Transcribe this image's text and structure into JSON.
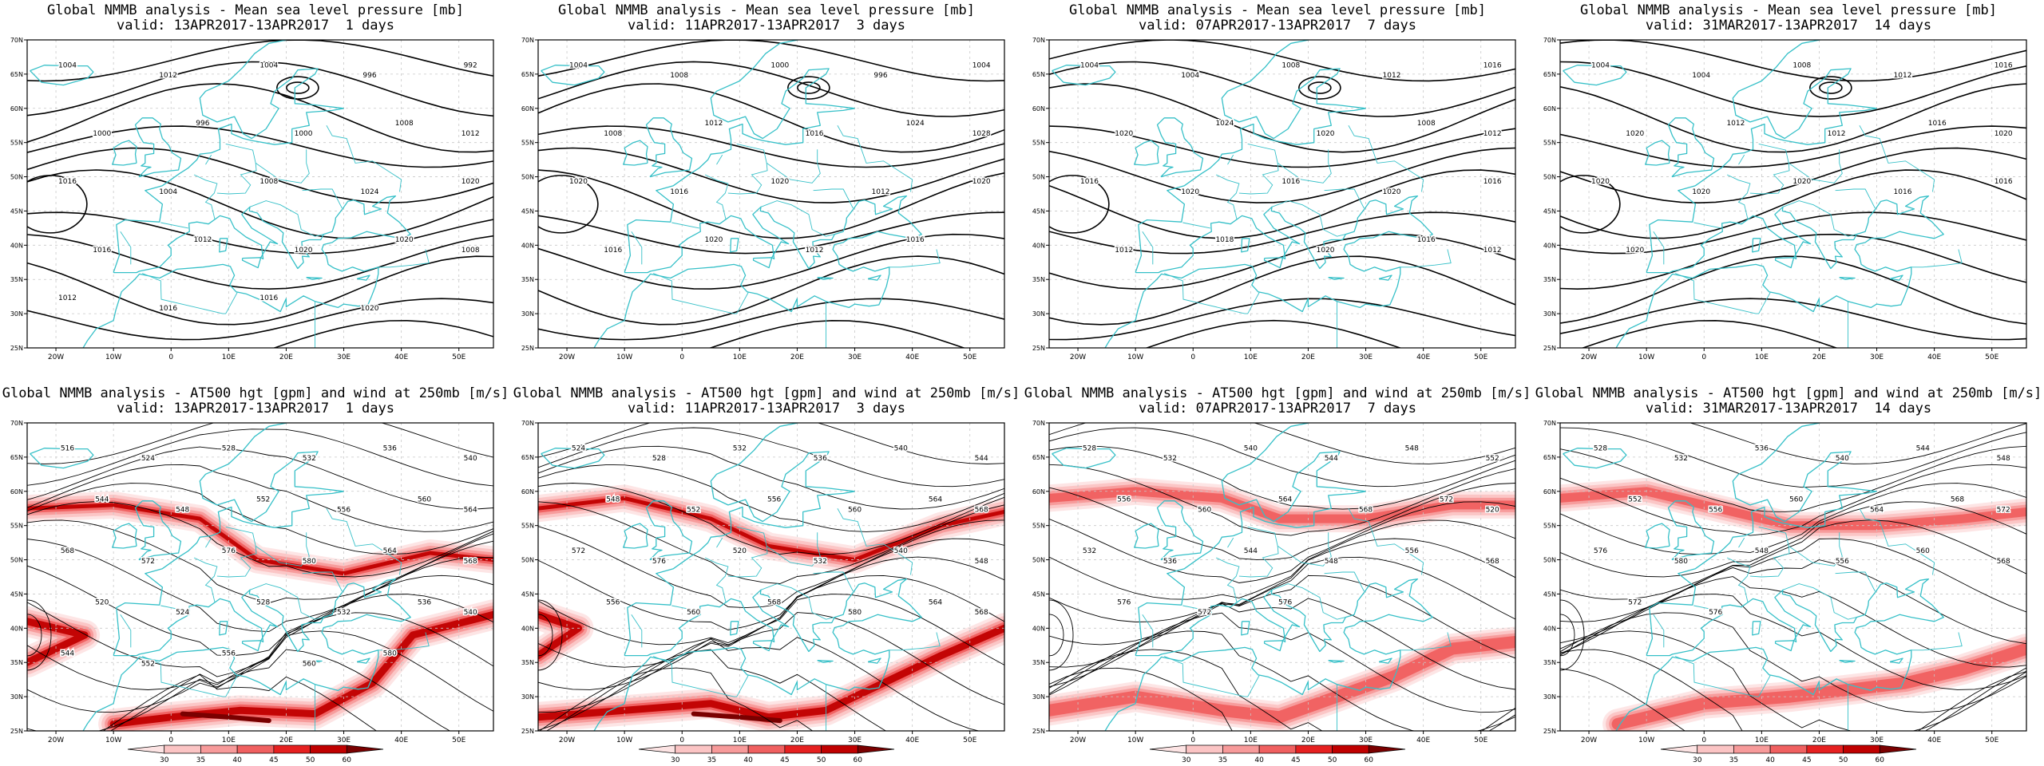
{
  "figure": {
    "rows": [
      {
        "title_line1": "Global NMMB analysis - Mean sea level pressure [mb]",
        "field": "mslp",
        "panels": [
          {
            "valid": "valid: 13APR2017-13APR2017  1 days"
          },
          {
            "valid": "valid: 11APR2017-13APR2017  3 days"
          },
          {
            "valid": "valid: 07APR2017-13APR2017  7 days"
          },
          {
            "valid": "valid: 31MAR2017-13APR2017  14 days"
          }
        ]
      },
      {
        "title_line1": "Global NMMB analysis - AT500 hgt [gpm] and wind at 250mb [m/s]",
        "field": "z500",
        "panels": [
          {
            "valid": "valid: 13APR2017-13APR2017  1 days"
          },
          {
            "valid": "valid: 11APR2017-13APR2017  3 days"
          },
          {
            "valid": "valid: 07APR2017-13APR2017  7 days"
          },
          {
            "valid": "valid: 31MAR2017-13APR2017  14 days"
          }
        ]
      }
    ]
  },
  "map": {
    "lon_ticks": [
      "20W",
      "10W",
      "0",
      "10E",
      "20E",
      "30E",
      "40E",
      "50E"
    ],
    "lat_ticks": [
      "70N",
      "65N",
      "60N",
      "55N",
      "50N",
      "45N",
      "40N",
      "35N",
      "30N",
      "25N"
    ],
    "coast_color": "#36c0c8",
    "contour_color": "#000000",
    "grid_color": "#c8c8c8"
  },
  "mslp_labels": [
    [
      "1004",
      "1012",
      "1004",
      "996",
      "992",
      "1000",
      "996",
      "1000",
      "1008",
      "1012",
      "1016",
      "1004",
      "1008",
      "1024",
      "1020",
      "1016",
      "1012",
      "1020",
      "1020",
      "1008",
      "1012",
      "1016",
      "1016",
      "1020"
    ],
    [
      "1004",
      "1008",
      "1000",
      "996",
      "1004",
      "1008",
      "1012",
      "1016",
      "1024",
      "1028",
      "1020",
      "1016",
      "1020",
      "1012",
      "1020",
      "1016",
      "1020",
      "1012",
      "1016"
    ],
    [
      "1004",
      "1004",
      "1008",
      "1012",
      "1016",
      "1020",
      "1024",
      "1020",
      "1008",
      "1012",
      "1016",
      "1020",
      "1016",
      "1020",
      "1016",
      "1012",
      "1018",
      "1020",
      "1016",
      "1012"
    ],
    [
      "1004",
      "1004",
      "1008",
      "1012",
      "1016",
      "1020",
      "1012",
      "1012",
      "1016",
      "1020",
      "1020",
      "1020",
      "1020",
      "1016",
      "1016",
      "1020"
    ]
  ],
  "z500_labels": [
    [
      "516",
      "524",
      "528",
      "532",
      "536",
      "540",
      "544",
      "548",
      "552",
      "556",
      "560",
      "564",
      "568",
      "572",
      "576",
      "580",
      "564",
      "568",
      "520",
      "524",
      "528",
      "532",
      "536",
      "540",
      "544",
      "552",
      "556",
      "560",
      "580"
    ],
    [
      "524",
      "528",
      "532",
      "536",
      "540",
      "544",
      "548",
      "552",
      "556",
      "560",
      "564",
      "568",
      "572",
      "576",
      "520",
      "532",
      "540",
      "548",
      "556",
      "560",
      "568",
      "580",
      "564",
      "568"
    ],
    [
      "528",
      "532",
      "540",
      "544",
      "548",
      "552",
      "556",
      "560",
      "564",
      "568",
      "572",
      "520",
      "532",
      "536",
      "544",
      "548",
      "556",
      "568",
      "576",
      "572",
      "576"
    ],
    [
      "528",
      "532",
      "536",
      "540",
      "544",
      "548",
      "552",
      "556",
      "560",
      "564",
      "568",
      "572",
      "576",
      "580",
      "548",
      "556",
      "560",
      "568",
      "572",
      "576"
    ]
  ],
  "colorbar": {
    "ticks": [
      "30",
      "35",
      "40",
      "45",
      "50",
      "60"
    ],
    "colors": [
      "#fde4e4",
      "#fbc4c4",
      "#f79a9a",
      "#f06060",
      "#e62020",
      "#c00000",
      "#7a0000"
    ]
  }
}
